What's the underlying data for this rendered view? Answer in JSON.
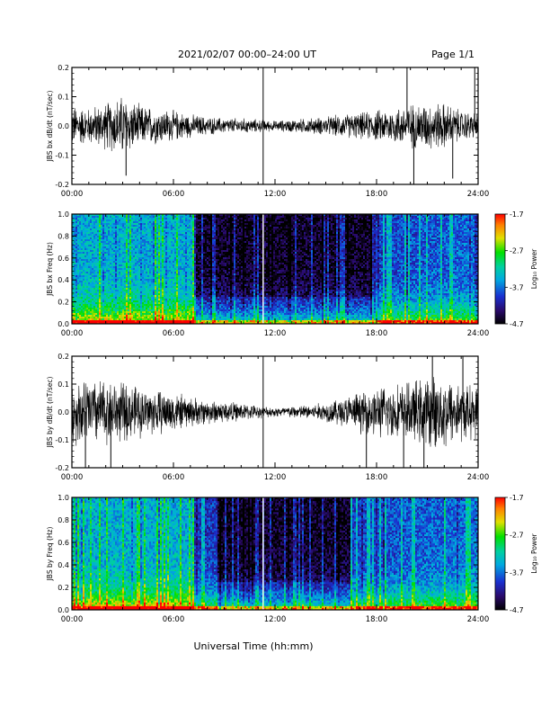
{
  "header": {
    "date_range": "2021/02/07  00:00–24:00 UT",
    "page": "Page 1/1"
  },
  "footer": {
    "xlabel": "Universal Time (hh:mm)"
  },
  "colorbar": {
    "label": "Log₁₀ Power",
    "ticks": [
      "-1.7",
      "-2.7",
      "-3.7",
      "-4.7"
    ],
    "range": [
      -4.7,
      -1.7
    ]
  },
  "x_ticks": [
    "00:00",
    "06:00",
    "12:00",
    "18:00",
    "24:00"
  ],
  "chart_data": [
    {
      "type": "line",
      "ylabel": "JBS bx dB/dt (nT/sec)",
      "ylim": [
        -0.2,
        0.2
      ],
      "y_ticks": [
        "0.2",
        "0.1",
        "0.0",
        "-0.1",
        "-0.2"
      ],
      "xlim_hours": [
        0,
        24
      ],
      "envelope": {
        "hours": [
          0,
          1,
          2,
          3,
          4,
          5,
          6,
          7,
          8,
          9,
          10,
          11,
          12,
          13,
          14,
          15,
          16,
          17,
          18,
          19,
          20,
          21,
          22,
          23,
          24
        ],
        "amplitude": [
          0.08,
          0.07,
          0.09,
          0.12,
          0.08,
          0.07,
          0.06,
          0.045,
          0.035,
          0.03,
          0.03,
          0.025,
          0.02,
          0.025,
          0.03,
          0.035,
          0.045,
          0.05,
          0.06,
          0.07,
          0.085,
          0.09,
          0.09,
          0.06,
          0.05
        ]
      },
      "spikes": [
        {
          "hour": 3.2,
          "value": -0.17
        },
        {
          "hour": 11.3,
          "value": 0.21
        },
        {
          "hour": 11.3,
          "value": -0.2
        },
        {
          "hour": 19.8,
          "value": 0.2
        },
        {
          "hour": 20.2,
          "value": -0.2
        },
        {
          "hour": 22.5,
          "value": -0.18
        },
        {
          "hour": 23.8,
          "value": 0.21
        }
      ]
    },
    {
      "type": "heatmap",
      "ylabel": "JBS bx Freq (Hz)",
      "ylim": [
        0.0,
        1.0
      ],
      "y_ticks": [
        "1.0",
        "0.8",
        "0.6",
        "0.4",
        "0.2",
        "0.0"
      ],
      "xlim_hours": [
        0,
        24
      ],
      "z_range": [
        -4.7,
        -1.7
      ],
      "bright_until_hour": 7.2,
      "quiet_from_hour": 7.2,
      "active_from_hour": 17.8
    },
    {
      "type": "line",
      "ylabel": "JBS by dB/dt (nT/sec)",
      "ylim": [
        -0.2,
        0.2
      ],
      "y_ticks": [
        "0.2",
        "0.1",
        "0.0",
        "-0.1",
        "-0.2"
      ],
      "xlim_hours": [
        0,
        24
      ],
      "envelope": {
        "hours": [
          0,
          1,
          2,
          3,
          4,
          5,
          6,
          7,
          8,
          9,
          10,
          11,
          12,
          13,
          14,
          15,
          16,
          17,
          18,
          19,
          20,
          21,
          22,
          23,
          24
        ],
        "amplitude": [
          0.12,
          0.14,
          0.13,
          0.12,
          0.1,
          0.09,
          0.08,
          0.06,
          0.05,
          0.045,
          0.035,
          0.025,
          0.02,
          0.025,
          0.03,
          0.04,
          0.06,
          0.08,
          0.1,
          0.11,
          0.12,
          0.14,
          0.15,
          0.12,
          0.1
        ]
      },
      "spikes": [
        {
          "hour": 0.8,
          "value": -0.2
        },
        {
          "hour": 2.3,
          "value": -0.2
        },
        {
          "hour": 11.3,
          "value": 0.21
        },
        {
          "hour": 11.3,
          "value": -0.2
        },
        {
          "hour": 17.4,
          "value": -0.2
        },
        {
          "hour": 19.6,
          "value": -0.2
        },
        {
          "hour": 20.8,
          "value": -0.2
        },
        {
          "hour": 21.3,
          "value": 0.2
        },
        {
          "hour": 23.1,
          "value": 0.2
        }
      ]
    },
    {
      "type": "heatmap",
      "ylabel": "JBS by Freq (Hz)",
      "ylim": [
        0.0,
        1.0
      ],
      "y_ticks": [
        "1.0",
        "0.8",
        "0.6",
        "0.4",
        "0.2",
        "0.0"
      ],
      "xlim_hours": [
        0,
        24
      ],
      "z_range": [
        -4.7,
        -1.7
      ],
      "bright_until_hour": 7.2,
      "quiet_from_hour": 8.5,
      "active_from_hour": 16.5
    }
  ]
}
